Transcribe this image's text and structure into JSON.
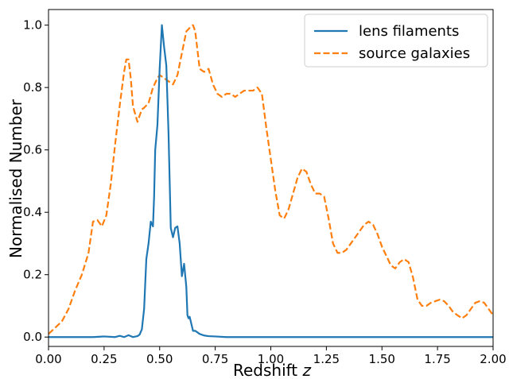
{
  "chart_data": {
    "type": "line",
    "xlabel": "Redshift",
    "xlabel_var": "z",
    "ylabel": "Normalised Number",
    "xlim": [
      0,
      2
    ],
    "ylim": [
      -0.03,
      1.05
    ],
    "grid": false,
    "legend_position": "top-right",
    "x_ticks": [
      0.0,
      0.25,
      0.5,
      0.75,
      1.0,
      1.25,
      1.5,
      1.75,
      2.0
    ],
    "x_tick_labels": [
      "0.00",
      "0.25",
      "0.50",
      "0.75",
      "1.00",
      "1.25",
      "1.50",
      "1.75",
      "2.00"
    ],
    "y_ticks": [
      0.0,
      0.2,
      0.4,
      0.6,
      0.8,
      1.0
    ],
    "y_tick_labels": [
      "0.0",
      "0.2",
      "0.4",
      "0.6",
      "0.8",
      "1.0"
    ],
    "series": [
      {
        "name": "lens filaments",
        "color": "#1f77b4",
        "style": "solid",
        "x": [
          0.0,
          0.1,
          0.2,
          0.25,
          0.3,
          0.32,
          0.34,
          0.36,
          0.38,
          0.4,
          0.41,
          0.42,
          0.43,
          0.44,
          0.45,
          0.46,
          0.47,
          0.475,
          0.48,
          0.49,
          0.5,
          0.51,
          0.52,
          0.53,
          0.54,
          0.55,
          0.56,
          0.57,
          0.58,
          0.59,
          0.6,
          0.61,
          0.62,
          0.625,
          0.63,
          0.635,
          0.64,
          0.65,
          0.66,
          0.67,
          0.68,
          0.7,
          0.72,
          0.75,
          0.8,
          1.0,
          1.5,
          2.0
        ],
        "y": [
          0.0,
          0.0,
          0.0,
          0.002,
          0.0,
          0.004,
          0.0,
          0.006,
          0.0,
          0.003,
          0.008,
          0.025,
          0.09,
          0.25,
          0.3,
          0.37,
          0.355,
          0.45,
          0.6,
          0.68,
          0.86,
          1.0,
          0.93,
          0.87,
          0.65,
          0.35,
          0.32,
          0.35,
          0.355,
          0.3,
          0.195,
          0.235,
          0.16,
          0.07,
          0.06,
          0.065,
          0.05,
          0.02,
          0.02,
          0.015,
          0.01,
          0.005,
          0.003,
          0.002,
          0.0,
          0.0,
          0.0,
          0.0
        ]
      },
      {
        "name": "source galaxies",
        "color": "#ff7f0e",
        "style": "dashed",
        "x": [
          0.0,
          0.03,
          0.06,
          0.09,
          0.12,
          0.15,
          0.18,
          0.2,
          0.22,
          0.24,
          0.26,
          0.28,
          0.3,
          0.32,
          0.34,
          0.35,
          0.36,
          0.37,
          0.38,
          0.4,
          0.41,
          0.42,
          0.43,
          0.45,
          0.47,
          0.49,
          0.5,
          0.52,
          0.54,
          0.56,
          0.58,
          0.6,
          0.62,
          0.64,
          0.65,
          0.66,
          0.68,
          0.7,
          0.72,
          0.74,
          0.76,
          0.78,
          0.8,
          0.82,
          0.84,
          0.86,
          0.88,
          0.9,
          0.92,
          0.94,
          0.96,
          0.98,
          1.0,
          1.02,
          1.04,
          1.06,
          1.08,
          1.1,
          1.12,
          1.14,
          1.16,
          1.18,
          1.2,
          1.22,
          1.24,
          1.26,
          1.28,
          1.3,
          1.32,
          1.34,
          1.36,
          1.38,
          1.4,
          1.42,
          1.44,
          1.46,
          1.48,
          1.5,
          1.52,
          1.54,
          1.56,
          1.58,
          1.6,
          1.62,
          1.64,
          1.66,
          1.68,
          1.7,
          1.72,
          1.74,
          1.76,
          1.78,
          1.8,
          1.82,
          1.84,
          1.86,
          1.88,
          1.9,
          1.92,
          1.94,
          1.96,
          1.98,
          2.0
        ],
        "y": [
          0.01,
          0.03,
          0.05,
          0.09,
          0.15,
          0.2,
          0.27,
          0.37,
          0.375,
          0.355,
          0.39,
          0.49,
          0.62,
          0.74,
          0.85,
          0.89,
          0.89,
          0.83,
          0.74,
          0.69,
          0.71,
          0.73,
          0.735,
          0.75,
          0.8,
          0.83,
          0.84,
          0.83,
          0.82,
          0.81,
          0.84,
          0.91,
          0.98,
          0.995,
          1.0,
          0.98,
          0.86,
          0.85,
          0.86,
          0.81,
          0.78,
          0.77,
          0.78,
          0.78,
          0.77,
          0.78,
          0.79,
          0.79,
          0.79,
          0.8,
          0.78,
          0.67,
          0.57,
          0.47,
          0.39,
          0.38,
          0.41,
          0.46,
          0.51,
          0.54,
          0.53,
          0.49,
          0.46,
          0.46,
          0.45,
          0.38,
          0.3,
          0.27,
          0.27,
          0.28,
          0.3,
          0.32,
          0.34,
          0.36,
          0.37,
          0.36,
          0.33,
          0.29,
          0.26,
          0.23,
          0.22,
          0.24,
          0.25,
          0.24,
          0.19,
          0.12,
          0.1,
          0.1,
          0.11,
          0.115,
          0.12,
          0.115,
          0.1,
          0.08,
          0.07,
          0.06,
          0.07,
          0.09,
          0.11,
          0.115,
          0.11,
          0.09,
          0.07
        ]
      }
    ]
  }
}
